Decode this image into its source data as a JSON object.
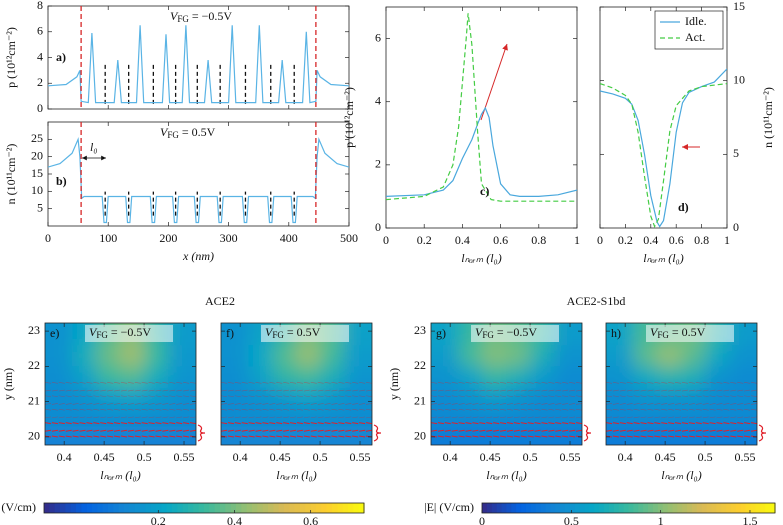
{
  "group_titles": [
    "ACE2",
    "ACE2-S1bd"
  ],
  "chart_data": [
    {
      "type": "line",
      "label": "a)",
      "vfg": {
        "base": "V",
        "sub": "FG",
        "rest": " = −0.5V"
      },
      "ylabel": "p (10¹²cm⁻²)",
      "xlim": [
        0,
        500
      ],
      "xticks": [
        0,
        100,
        200,
        300,
        400,
        500
      ],
      "xtick_labels": false,
      "ylim": [
        0,
        8
      ],
      "yticks": [
        0,
        2,
        4,
        6,
        8
      ],
      "red_lines": [
        55,
        445
      ],
      "black_lines": [
        95,
        134,
        175,
        212,
        248,
        286,
        328,
        370,
        409
      ],
      "series": [
        {
          "color": "#5ab4e5",
          "x": [
            0,
            30,
            48,
            53,
            55,
            67,
            73,
            79,
            110,
            116,
            122,
            147,
            153,
            159,
            190,
            196,
            202,
            223,
            229,
            235,
            260,
            266,
            272,
            300,
            306,
            312,
            345,
            351,
            357,
            383,
            389,
            395,
            423,
            429,
            435,
            445,
            447,
            452,
            470,
            500
          ],
          "values": [
            1.8,
            1.9,
            2.5,
            3.0,
            0.6,
            0.5,
            5.9,
            0.5,
            0.5,
            3.8,
            0.5,
            0.5,
            6.5,
            0.5,
            0.5,
            5.8,
            0.5,
            0.5,
            6.5,
            0.5,
            0.5,
            3.8,
            0.5,
            0.5,
            6.5,
            0.5,
            0.5,
            6.5,
            0.5,
            0.5,
            3.8,
            0.5,
            0.5,
            6.0,
            0.5,
            0.6,
            3.0,
            2.5,
            1.9,
            1.8
          ]
        }
      ]
    },
    {
      "type": "line",
      "label": "b)",
      "vfg": {
        "base": "V",
        "sub": "FG",
        "rest": " = 0.5V"
      },
      "l0_label": "l₀",
      "xlabel": "x (nm)",
      "ylabel": "n (10¹¹cm⁻²)",
      "xlim": [
        0,
        500
      ],
      "xticks": [
        0,
        100,
        200,
        300,
        400,
        500
      ],
      "ylim": [
        0,
        30
      ],
      "yticks": [
        5,
        10,
        15,
        20,
        25
      ],
      "red_lines": [
        55,
        445
      ],
      "black_lines": [
        95,
        134,
        175,
        212,
        248,
        286,
        328,
        370,
        409
      ],
      "series": [
        {
          "color": "#5ab4e5",
          "x": [
            0,
            20,
            40,
            50,
            53,
            56,
            60,
            90,
            93,
            97,
            100,
            129,
            132,
            136,
            139,
            170,
            173,
            177,
            180,
            207,
            210,
            214,
            217,
            243,
            246,
            250,
            253,
            281,
            284,
            288,
            291,
            323,
            326,
            330,
            333,
            365,
            368,
            372,
            375,
            404,
            407,
            411,
            414,
            440,
            444,
            447,
            450,
            460,
            480,
            500
          ],
          "values": [
            17,
            18,
            21,
            25,
            20,
            8,
            8.5,
            8.5,
            1,
            1,
            8.5,
            8.5,
            1,
            1,
            8.5,
            8.5,
            1,
            1,
            8.5,
            8.5,
            1,
            1,
            8.5,
            8.5,
            1,
            1,
            8.5,
            8.5,
            1,
            1,
            8.5,
            8.5,
            1,
            1,
            8.5,
            8.5,
            1,
            1,
            8.5,
            8.5,
            1,
            1,
            8.5,
            8.5,
            8,
            20,
            25,
            21,
            18,
            17
          ]
        }
      ]
    },
    {
      "type": "line",
      "label": "c)",
      "xlabel": "lₙₒᵣₘ (l₀)",
      "ylabel": "p (10¹²cm⁻²)",
      "xlim": [
        0,
        1
      ],
      "xticks": [
        0,
        0.2,
        0.4,
        0.6,
        0.8,
        1
      ],
      "ylim": [
        0,
        7
      ],
      "yticks": [
        0,
        2,
        4,
        6
      ],
      "series": [
        {
          "name": "Idle.",
          "color": "#4aa8dd",
          "dash": false,
          "x": [
            0,
            0.2,
            0.3,
            0.35,
            0.4,
            0.45,
            0.48,
            0.5,
            0.52,
            0.54,
            0.56,
            0.6,
            0.65,
            0.7,
            0.8,
            0.9,
            1
          ],
          "values": [
            1.0,
            1.05,
            1.2,
            1.5,
            2.2,
            2.8,
            3.3,
            3.6,
            3.8,
            3.5,
            2.6,
            1.4,
            1.05,
            1.0,
            1.0,
            1.05,
            1.2
          ]
        },
        {
          "name": "Act.",
          "color": "#44cc44",
          "dash": true,
          "x": [
            0,
            0.2,
            0.3,
            0.35,
            0.38,
            0.4,
            0.42,
            0.43,
            0.45,
            0.48,
            0.5,
            0.55,
            0.6,
            0.8,
            1
          ],
          "values": [
            0.9,
            1.0,
            1.3,
            2.0,
            3.2,
            4.6,
            6.0,
            6.8,
            5.8,
            3.0,
            1.4,
            0.9,
            0.85,
            0.85,
            0.85
          ]
        }
      ]
    },
    {
      "type": "line",
      "label": "d)",
      "xlabel": "lₙₒᵣₘ (l₀)",
      "ylabel": "n (10¹¹cm⁻²)",
      "yaxis_side": "right",
      "legend": "upper right",
      "xlim": [
        0,
        1
      ],
      "xticks": [
        0,
        0.2,
        0.4,
        0.6,
        0.8,
        1
      ],
      "ylim": [
        0,
        15
      ],
      "yticks": [
        0,
        5,
        10,
        15
      ],
      "series": [
        {
          "name": "Idle.",
          "color": "#4aa8dd",
          "dash": false,
          "x": [
            0,
            0.1,
            0.2,
            0.25,
            0.3,
            0.35,
            0.4,
            0.45,
            0.47,
            0.5,
            0.55,
            0.6,
            0.65,
            0.7,
            0.8,
            0.9,
            1
          ],
          "values": [
            9.3,
            9.1,
            8.8,
            8.4,
            7.3,
            5.0,
            2.2,
            0.4,
            0.1,
            0.5,
            3.0,
            6.5,
            8.5,
            9.2,
            9.6,
            9.9,
            10.8
          ]
        },
        {
          "name": "Act.",
          "color": "#44cc44",
          "dash": true,
          "x": [
            0,
            0.1,
            0.2,
            0.25,
            0.3,
            0.35,
            0.4,
            0.43,
            0.46,
            0.5,
            0.55,
            0.6,
            0.7,
            0.8,
            1
          ],
          "values": [
            9.8,
            9.5,
            9.0,
            8.4,
            6.5,
            3.5,
            0.8,
            0.1,
            0.6,
            3.2,
            6.6,
            8.3,
            9.3,
            9.6,
            9.8
          ]
        }
      ]
    },
    {
      "type": "heatmap",
      "label": "e)",
      "vfg": {
        "base": "V",
        "sub": "FG",
        "rest": " = −0.5V"
      },
      "xlabel": "lₙₒᵣₘ (l₀)",
      "ylabel": "y (nm)",
      "xlim": [
        0.376,
        0.565
      ],
      "xticks": [
        0.4,
        0.45,
        0.5,
        0.55
      ],
      "ylim": [
        19.77,
        23.23
      ],
      "yticks": [
        20,
        21,
        22,
        23
      ],
      "clim": [
        -0.1,
        0.74
      ],
      "x_edges": [
        0.376,
        0.41,
        0.44,
        0.47,
        0.5,
        0.53,
        0.565
      ],
      "y_edges": [
        23.23,
        22.6,
        22.0,
        21.4,
        20.8,
        20.3,
        19.77
      ],
      "z": [
        [
          0.15,
          0.22,
          0.35,
          0.42,
          0.3,
          0.18
        ],
        [
          0.15,
          0.25,
          0.38,
          0.45,
          0.32,
          0.17
        ],
        [
          0.14,
          0.2,
          0.32,
          0.35,
          0.25,
          0.16
        ],
        [
          0.13,
          0.15,
          0.18,
          0.2,
          0.17,
          0.14
        ],
        [
          0.14,
          0.14,
          0.14,
          0.14,
          0.14,
          0.14
        ],
        [
          0.1,
          0.1,
          0.1,
          0.1,
          0.1,
          0.1
        ]
      ]
    },
    {
      "type": "heatmap",
      "label": "f)",
      "vfg": {
        "base": "V",
        "sub": "FG",
        "rest": " = 0.5V"
      },
      "xlabel": "lₙₒᵣₘ (l₀)",
      "ytick_labels": false,
      "xlim": [
        0.376,
        0.565
      ],
      "xticks": [
        0.4,
        0.45,
        0.5,
        0.55
      ],
      "ylim": [
        19.77,
        23.23
      ],
      "yticks": [
        20,
        21,
        22,
        23
      ],
      "clim": [
        -0.1,
        0.74
      ],
      "x_edges": [
        0.376,
        0.41,
        0.44,
        0.47,
        0.5,
        0.53,
        0.565
      ],
      "y_edges": [
        23.23,
        22.6,
        22.0,
        21.4,
        20.8,
        20.3,
        19.77
      ],
      "z": [
        [
          0.15,
          0.2,
          0.3,
          0.4,
          0.35,
          0.2
        ],
        [
          0.15,
          0.22,
          0.35,
          0.44,
          0.33,
          0.18
        ],
        [
          0.14,
          0.2,
          0.3,
          0.33,
          0.26,
          0.16
        ],
        [
          0.13,
          0.15,
          0.17,
          0.2,
          0.17,
          0.14
        ],
        [
          0.14,
          0.14,
          0.14,
          0.14,
          0.14,
          0.14
        ],
        [
          0.11,
          0.11,
          0.11,
          0.11,
          0.11,
          0.11
        ]
      ]
    },
    {
      "type": "heatmap",
      "label": "g)",
      "vfg": {
        "base": "V",
        "sub": "FG",
        "rest": " = −0.5V"
      },
      "xlabel": "lₙₒᵣₘ (l₀)",
      "ylabel": "y (nm)",
      "xlim": [
        0.376,
        0.565
      ],
      "xticks": [
        0.4,
        0.45,
        0.5,
        0.55
      ],
      "ylim": [
        19.77,
        23.23
      ],
      "yticks": [
        20,
        21,
        22,
        23
      ],
      "clim": [
        0,
        1.64
      ],
      "x_edges": [
        0.376,
        0.41,
        0.44,
        0.47,
        0.5,
        0.53,
        0.565
      ],
      "y_edges": [
        23.23,
        22.6,
        22.0,
        21.4,
        20.8,
        20.3,
        19.77
      ],
      "z": [
        [
          0.6,
          0.8,
          0.95,
          0.9,
          0.8,
          0.55
        ],
        [
          0.55,
          0.85,
          1.0,
          0.95,
          0.7,
          0.5
        ],
        [
          0.5,
          0.6,
          0.8,
          0.7,
          0.55,
          0.45
        ],
        [
          0.45,
          0.5,
          0.55,
          0.5,
          0.45,
          0.45
        ],
        [
          0.45,
          0.45,
          0.45,
          0.45,
          0.45,
          0.45
        ],
        [
          0.35,
          0.35,
          0.35,
          0.35,
          0.35,
          0.35
        ]
      ]
    },
    {
      "type": "heatmap",
      "label": "h)",
      "vfg": {
        "base": "V",
        "sub": "FG",
        "rest": " = 0.5V"
      },
      "xlabel": "lₙₒᵣₘ (l₀)",
      "ytick_labels": false,
      "xlim": [
        0.376,
        0.565
      ],
      "xticks": [
        0.4,
        0.45,
        0.5,
        0.55
      ],
      "ylim": [
        19.77,
        23.23
      ],
      "yticks": [
        20,
        21,
        22,
        23
      ],
      "clim": [
        0,
        1.64
      ],
      "x_edges": [
        0.376,
        0.41,
        0.44,
        0.47,
        0.5,
        0.53,
        0.565
      ],
      "y_edges": [
        23.23,
        22.6,
        22.0,
        21.4,
        20.8,
        20.3,
        19.77
      ],
      "z": [
        [
          0.6,
          0.85,
          0.9,
          0.95,
          0.75,
          0.55
        ],
        [
          0.55,
          0.9,
          1.05,
          0.9,
          0.65,
          0.5
        ],
        [
          0.5,
          0.65,
          0.75,
          0.7,
          0.5,
          0.45
        ],
        [
          0.45,
          0.5,
          0.5,
          0.5,
          0.45,
          0.45
        ],
        [
          0.45,
          0.45,
          0.45,
          0.45,
          0.45,
          0.45
        ],
        [
          0.35,
          0.35,
          0.35,
          0.35,
          0.35,
          0.35
        ]
      ]
    },
    {
      "type": "colorbar",
      "label": "|E| (V/cm)",
      "clim": [
        -0.1,
        0.74
      ],
      "ticks": [
        0.2,
        0.4,
        0.6
      ]
    },
    {
      "type": "colorbar",
      "label": "|E| (V/cm)",
      "clim": [
        0,
        1.64
      ],
      "ticks": [
        0,
        0.5,
        1,
        1.5
      ]
    }
  ]
}
